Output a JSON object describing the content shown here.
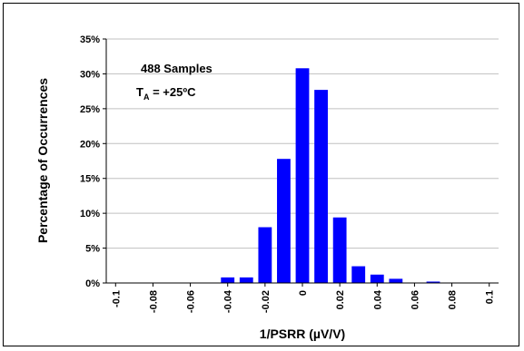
{
  "chart_data": {
    "type": "bar",
    "title": "",
    "xlabel": "1/PSRR (µV/V)",
    "ylabel": "Percentage of Occurrences",
    "x_ticks": [
      "-0.1",
      "-0.08",
      "-0.06",
      "-0.04",
      "-0.02",
      "0",
      "0.02",
      "0.04",
      "0.06",
      "0.08",
      "0.1"
    ],
    "y_ticks": [
      "0%",
      "5%",
      "10%",
      "15%",
      "20%",
      "25%",
      "30%",
      "35%"
    ],
    "ylim": [
      0,
      35
    ],
    "grid": "horizontal",
    "bar_color": "#0000ff",
    "x": [
      -0.1,
      -0.09,
      -0.08,
      -0.07,
      -0.06,
      -0.05,
      -0.04,
      -0.03,
      -0.02,
      -0.01,
      0.0,
      0.01,
      0.02,
      0.03,
      0.04,
      0.05,
      0.06,
      0.07,
      0.08,
      0.09,
      0.1
    ],
    "values": [
      0,
      0,
      0,
      0,
      0,
      0,
      0.8,
      0.8,
      8.0,
      17.8,
      30.8,
      27.7,
      9.4,
      2.4,
      1.2,
      0.6,
      0,
      0.2,
      0,
      0,
      0
    ],
    "annotations": {
      "samples": "488 Samples",
      "temp_prefix": "T",
      "temp_sub": "A",
      "temp_suffix": " = +25ºC"
    }
  }
}
